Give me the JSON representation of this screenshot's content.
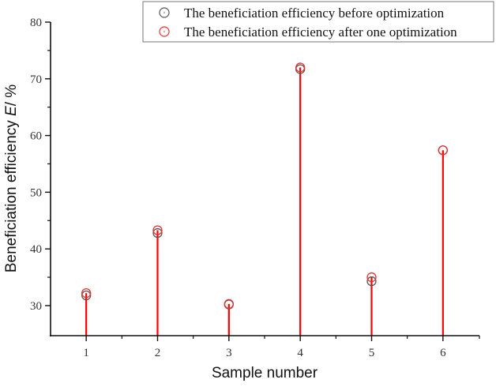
{
  "chart_data": {
    "type": "stem",
    "title": "",
    "xlabel": "Sample number",
    "ylabel_prefix": "Beneficiation efficiency ",
    "ylabel_italic": "E",
    "ylabel_suffix": "/ %",
    "x": [
      1,
      2,
      3,
      4,
      5,
      6
    ],
    "categories": [
      "1",
      "2",
      "3",
      "4",
      "5",
      "6"
    ],
    "xlim": [
      0.5,
      6.5
    ],
    "ylim": [
      24.7,
      80
    ],
    "yticks": [
      30,
      40,
      50,
      60,
      70,
      80
    ],
    "yminor": [
      35,
      45,
      55,
      65,
      75
    ],
    "xminor": [
      1.5,
      2.5,
      3.5,
      4.5,
      5.5
    ],
    "grid": false,
    "legend_position": "top-right",
    "series": [
      {
        "name": "The beneficiation efficiency before optimization",
        "color": "#555555",
        "marker": "open-circle",
        "values": [
          31.8,
          42.8,
          30.2,
          71.7,
          34.3,
          57.4
        ]
      },
      {
        "name": "The beneficiation efficiency after one optimization",
        "color": "#e8312f",
        "marker": "open-circle",
        "stem_color": "#ff0000",
        "values": [
          32.2,
          43.3,
          30.3,
          72.0,
          35.0,
          57.4
        ]
      }
    ]
  }
}
